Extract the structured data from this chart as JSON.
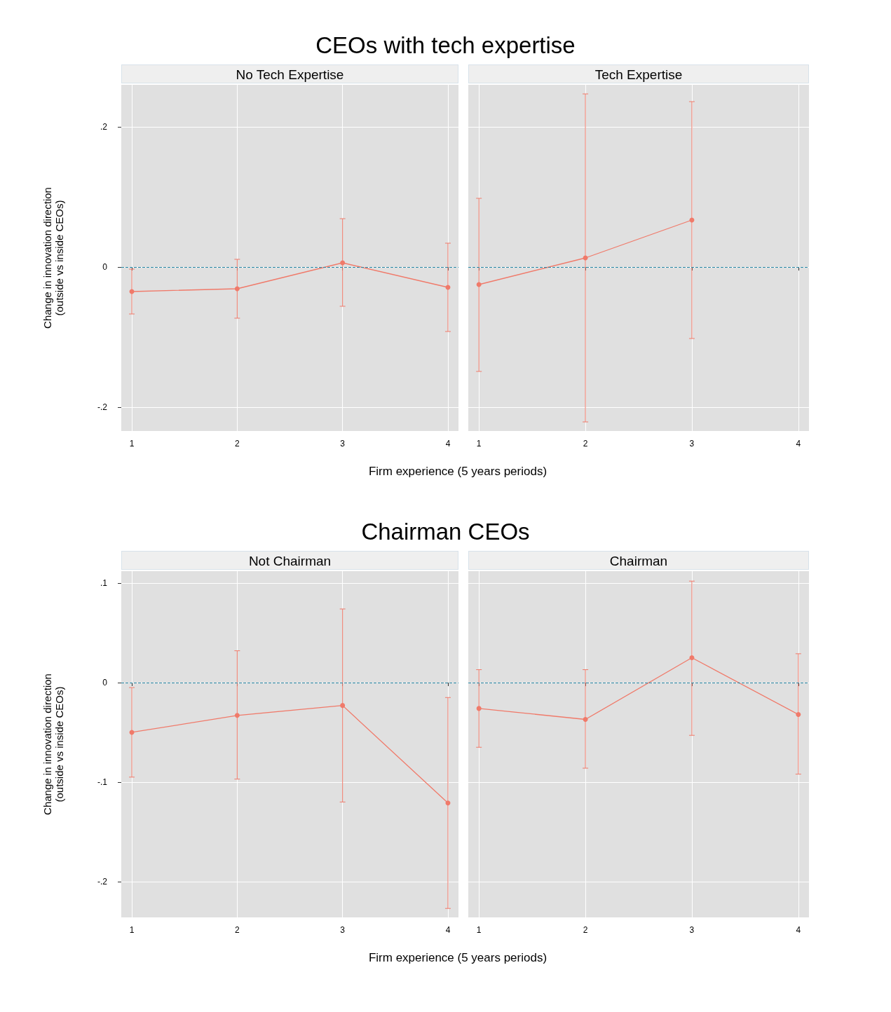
{
  "chart_data": [
    {
      "type": "line",
      "title": "CEOs with tech expertise",
      "subtitle": "No Tech Expertise",
      "xlabel": "Firm experience (5 years periods)",
      "ylabel": "Change in innovation direction\n(outside vs inside CEOs)",
      "x": [
        1,
        2,
        3,
        4
      ],
      "xlim": [
        0.9,
        4.1
      ],
      "xticks": [
        1,
        2,
        3,
        4
      ],
      "ylim": [
        -0.234,
        0.26
      ],
      "yticks": [
        {
          "value": -0.2,
          "label": "-.2"
        },
        0,
        {
          "value": 0.2,
          "label": ".2"
        }
      ],
      "series": [
        {
          "color": "#f07a6a",
          "values": [
            -0.035,
            -0.031,
            0.006,
            -0.029
          ],
          "errors": [
            [
              -0.067,
              -0.003
            ],
            [
              -0.073,
              0.011
            ],
            [
              -0.056,
              0.069
            ],
            [
              -0.092,
              0.034
            ]
          ]
        }
      ],
      "ref_lines": [
        {
          "axis": "y",
          "value": 0,
          "color": "#2a8aa8",
          "line_style": "dashed"
        }
      ],
      "grid": true,
      "marker": "circle"
    },
    {
      "type": "line",
      "subtitle": "Tech Expertise",
      "xlim": [
        0.9,
        4.1
      ],
      "xticks": [
        1,
        2,
        3,
        4
      ],
      "ylim": [
        -0.234,
        0.26
      ],
      "yticks": [
        -0.2,
        0,
        0.2
      ],
      "tick_labels": "x",
      "series": [
        {
          "color": "#f07a6a",
          "x": [
            1,
            2,
            3
          ],
          "values": [
            -0.025,
            0.013,
            0.067
          ],
          "errors": [
            [
              -0.149,
              0.098
            ],
            [
              -0.221,
              0.247
            ],
            [
              -0.102,
              0.236
            ]
          ]
        }
      ],
      "ref_lines": [
        {
          "axis": "y",
          "value": 0,
          "color": "#2a8aa8",
          "line_style": "dashed"
        }
      ],
      "grid": true,
      "marker": "circle"
    },
    {
      "type": "line",
      "title": "Chairman CEOs",
      "subtitle": "Not Chairman",
      "xlabel": "Firm experience (5 years periods)",
      "ylabel": "Change in innovation direction\n(outside vs inside CEOs)",
      "x": [
        1,
        2,
        3,
        4
      ],
      "xlim": [
        0.9,
        4.1
      ],
      "xticks": [
        1,
        2,
        3,
        4
      ],
      "ylim": [
        -0.236,
        0.112
      ],
      "yticks": [
        {
          "value": -0.2,
          "label": "-.2"
        },
        {
          "value": -0.1,
          "label": "-.1"
        },
        0,
        {
          "value": 0.1,
          "label": ".1"
        }
      ],
      "series": [
        {
          "color": "#f07a6a",
          "values": [
            -0.05,
            -0.033,
            -0.023,
            -0.121
          ],
          "errors": [
            [
              -0.095,
              -0.005
            ],
            [
              -0.097,
              0.032
            ],
            [
              -0.12,
              0.074
            ],
            [
              -0.227,
              -0.015
            ]
          ]
        }
      ],
      "ref_lines": [
        {
          "axis": "y",
          "value": 0,
          "color": "#2a8aa8",
          "line_style": "dashed"
        }
      ],
      "grid": true,
      "marker": "circle"
    },
    {
      "type": "line",
      "subtitle": "Chairman",
      "x": [
        1,
        2,
        3,
        4
      ],
      "xlim": [
        0.9,
        4.1
      ],
      "xticks": [
        1,
        2,
        3,
        4
      ],
      "ylim": [
        -0.236,
        0.112
      ],
      "yticks": [
        -0.2,
        -0.1,
        0,
        0.1
      ],
      "tick_labels": "x",
      "series": [
        {
          "color": "#f07a6a",
          "values": [
            -0.026,
            -0.037,
            0.025,
            -0.032
          ],
          "errors": [
            [
              -0.065,
              0.013
            ],
            [
              -0.086,
              0.013
            ],
            [
              -0.053,
              0.102
            ],
            [
              -0.092,
              0.029
            ]
          ]
        }
      ],
      "ref_lines": [
        {
          "axis": "y",
          "value": 0,
          "color": "#2a8aa8",
          "line_style": "dashed"
        }
      ],
      "grid": true,
      "marker": "circle"
    }
  ]
}
